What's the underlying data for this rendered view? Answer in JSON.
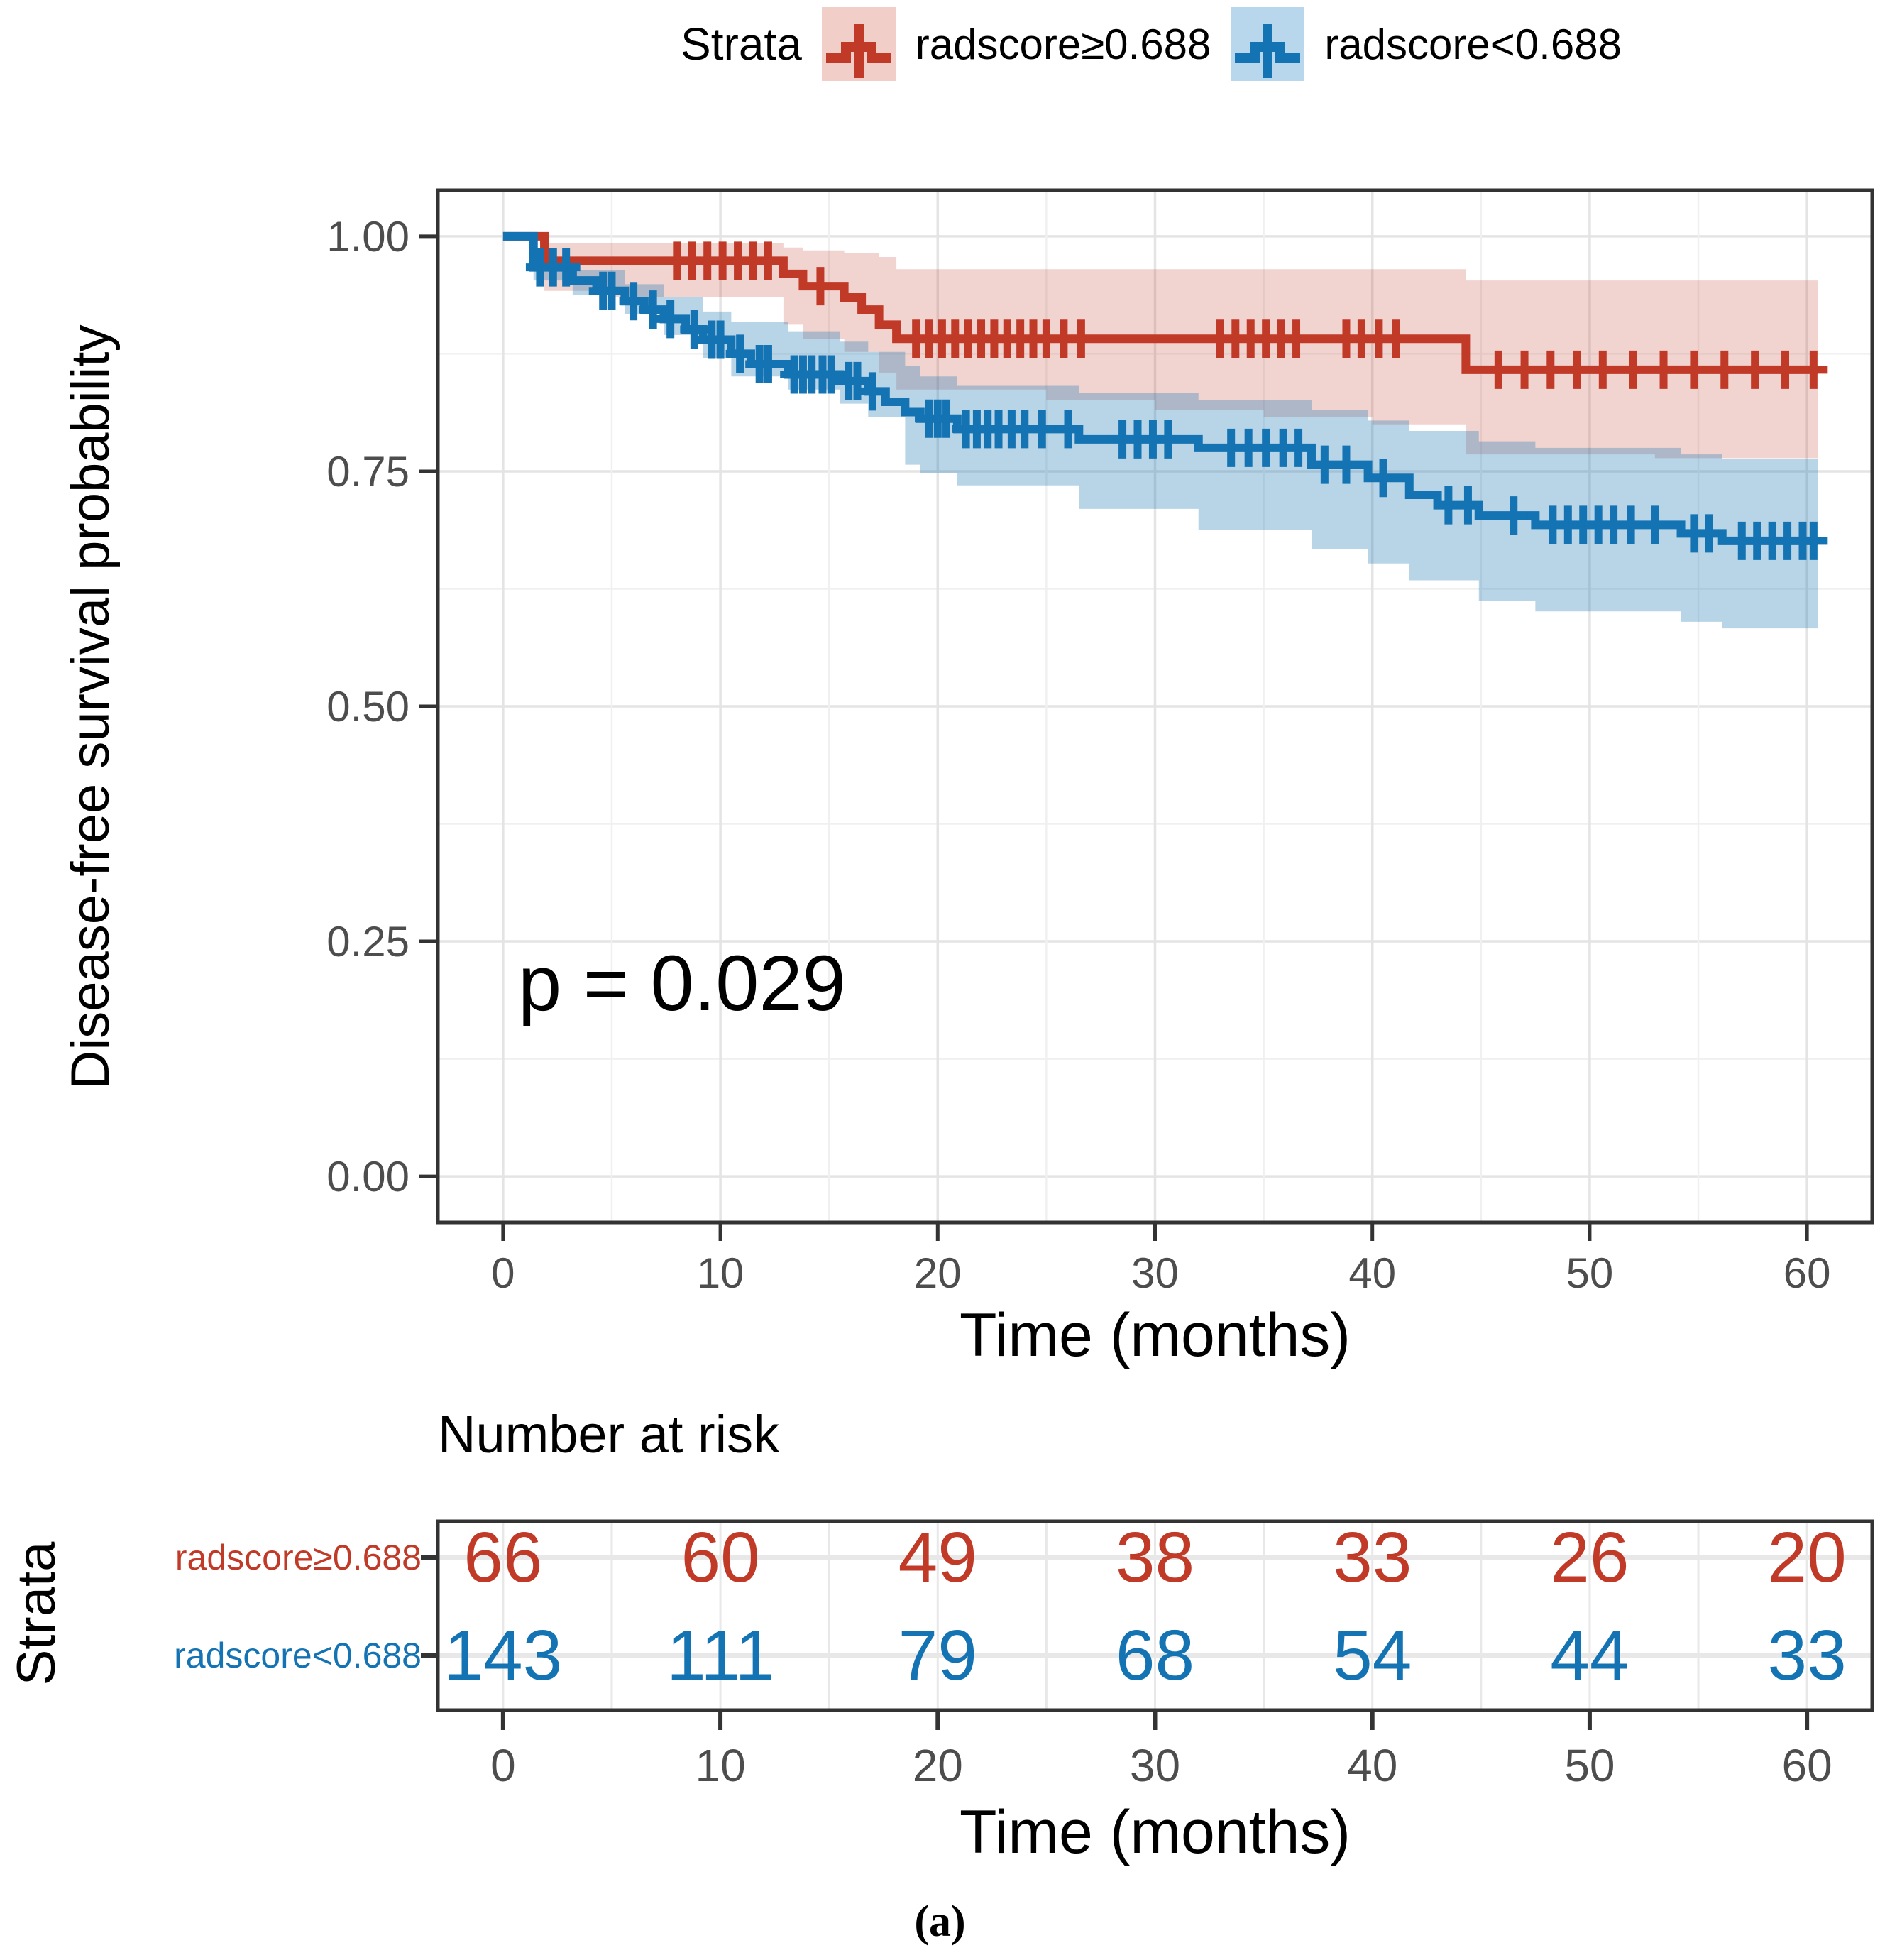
{
  "figure": {
    "caption": "(a)",
    "background": "#ffffff"
  },
  "legend": {
    "title": "Strata",
    "items": [
      {
        "label": "radscore≥0.688",
        "line_color": "#c13a27",
        "band_color": "#f2cec8"
      },
      {
        "label": "radscore<0.688",
        "line_color": "#1473b3",
        "band_color": "#b9d7ec"
      }
    ]
  },
  "style": {
    "axis_text_color": "#4d4d4d",
    "axis_line_color": "#333333",
    "grid_major_color": "#e4e4e4",
    "grid_minor_color": "#f0f0f0",
    "risk_grid_color": "#e8e8e8"
  },
  "chart_data": {
    "type": "line",
    "subtype": "kaplan_meier_step_with_confidence_bands",
    "title": "",
    "xlabel": "Time (months)",
    "ylabel": "Disease-free survival probability",
    "p_value_text": "p = 0.029",
    "xlim": [
      -3,
      63
    ],
    "ylim": [
      -0.049,
      1.049
    ],
    "t_end": 60.5,
    "grid": true,
    "x_ticks": [
      0,
      10,
      20,
      30,
      40,
      50,
      60
    ],
    "x_minor_ticks": [
      5,
      15,
      25,
      35,
      45,
      55
    ],
    "y_ticks": [
      {
        "v": 1.0,
        "label": "1.00"
      },
      {
        "v": 0.75,
        "label": "0.75"
      },
      {
        "v": 0.5,
        "label": "0.50"
      },
      {
        "v": 0.25,
        "label": "0.25"
      },
      {
        "v": 0.0,
        "label": "0.00"
      }
    ],
    "y_minor_ticks": [
      0.125,
      0.375,
      0.625,
      0.875
    ],
    "series": [
      {
        "name": "radscore≥0.688",
        "color": "#c13a27",
        "band_opacity": 0.22,
        "steps": [
          [
            0,
            1.0
          ],
          [
            1.9,
            0.974
          ],
          [
            12.9,
            0.96
          ],
          [
            13.8,
            0.947
          ],
          [
            15.7,
            0.935
          ],
          [
            16.5,
            0.922
          ],
          [
            17.3,
            0.906
          ],
          [
            18.1,
            0.891
          ],
          [
            44.3,
            0.858
          ]
        ],
        "censor_times": [
          8,
          8.7,
          9.4,
          10.1,
          10.8,
          11.5,
          12.2,
          14.6,
          19,
          19.6,
          20.2,
          20.8,
          21.4,
          22,
          22.6,
          23.2,
          23.8,
          24.4,
          25,
          25.8,
          26.6,
          33,
          33.7,
          34.4,
          35.1,
          35.8,
          36.5,
          38.8,
          39.5,
          40.3,
          41.1,
          45.8,
          47,
          48.2,
          49.4,
          50.6,
          52,
          53.4,
          54.8,
          56.2,
          57.6,
          59,
          60.3
        ],
        "band": [
          [
            0,
            1,
            1
          ],
          [
            1.9,
            0.942,
            0.993
          ],
          [
            5,
            0.935,
            0.993
          ],
          [
            12.9,
            0.906,
            0.988
          ],
          [
            13.8,
            0.891,
            0.985
          ],
          [
            15.7,
            0.877,
            0.982
          ],
          [
            17.3,
            0.855,
            0.978
          ],
          [
            18.1,
            0.837,
            0.965
          ],
          [
            25,
            0.826,
            0.965
          ],
          [
            30,
            0.815,
            0.965
          ],
          [
            35,
            0.808,
            0.965
          ],
          [
            40,
            0.8,
            0.965
          ],
          [
            44.3,
            0.768,
            0.953
          ],
          [
            53,
            0.764,
            0.953
          ]
        ]
      },
      {
        "name": "radscore<0.688",
        "color": "#1473b3",
        "band_opacity": 0.3,
        "steps": [
          [
            0,
            1.0
          ],
          [
            1.4,
            0.967
          ],
          [
            3.2,
            0.953
          ],
          [
            4.3,
            0.942
          ],
          [
            5.6,
            0.931
          ],
          [
            6.5,
            0.922
          ],
          [
            7.4,
            0.912
          ],
          [
            8.4,
            0.901
          ],
          [
            9.2,
            0.89
          ],
          [
            10.5,
            0.875
          ],
          [
            11.4,
            0.864
          ],
          [
            13.1,
            0.853
          ],
          [
            15.5,
            0.846
          ],
          [
            16.8,
            0.835
          ],
          [
            17.6,
            0.824
          ],
          [
            18.5,
            0.813
          ],
          [
            19.2,
            0.806
          ],
          [
            20.9,
            0.795
          ],
          [
            26.5,
            0.784
          ],
          [
            32,
            0.775
          ],
          [
            37.2,
            0.757
          ],
          [
            39.8,
            0.743
          ],
          [
            41.7,
            0.725
          ],
          [
            43,
            0.714
          ],
          [
            44.9,
            0.703
          ],
          [
            47.5,
            0.693
          ],
          [
            54.2,
            0.684
          ],
          [
            56.1,
            0.676
          ]
        ],
        "censor_times": [
          1.7,
          2.3,
          2.9,
          4.6,
          5,
          6,
          6.9,
          7.7,
          8.8,
          9.6,
          10,
          10.9,
          11.8,
          12.2,
          13.4,
          13.8,
          14.2,
          14.7,
          15.1,
          15.9,
          16.3,
          17,
          19.6,
          20,
          20.4,
          21.3,
          21.8,
          22.3,
          22.8,
          23.4,
          24,
          24.8,
          26,
          28.5,
          29.2,
          29.9,
          30.6,
          33.5,
          34.3,
          35.1,
          35.9,
          36.6,
          37.8,
          38.8,
          40.5,
          43.5,
          44.4,
          46.5,
          48.3,
          49,
          49.7,
          50.4,
          51.1,
          51.9,
          53,
          54.8,
          55.5,
          57,
          57.7,
          58.4,
          59.1,
          59.8,
          60.3
        ],
        "band": [
          [
            0,
            1,
            1
          ],
          [
            1.4,
            0.953,
            0.975
          ],
          [
            3.2,
            0.938,
            0.964
          ],
          [
            5.6,
            0.917,
            0.949
          ],
          [
            7.4,
            0.895,
            0.935
          ],
          [
            9.2,
            0.87,
            0.92
          ],
          [
            10.5,
            0.851,
            0.909
          ],
          [
            13.1,
            0.837,
            0.899
          ],
          [
            15.5,
            0.822,
            0.888
          ],
          [
            16.8,
            0.808,
            0.877
          ],
          [
            18.5,
            0.757,
            0.862
          ],
          [
            19.2,
            0.748,
            0.851
          ],
          [
            20.9,
            0.735,
            0.841
          ],
          [
            26.5,
            0.71,
            0.833
          ],
          [
            32,
            0.688,
            0.826
          ],
          [
            37.2,
            0.667,
            0.815
          ],
          [
            39.8,
            0.652,
            0.804
          ],
          [
            41.7,
            0.634,
            0.793
          ],
          [
            44.9,
            0.612,
            0.782
          ],
          [
            47.5,
            0.601,
            0.775
          ],
          [
            54.2,
            0.59,
            0.768
          ],
          [
            56.1,
            0.583,
            0.763
          ]
        ]
      }
    ]
  },
  "risk_table": {
    "heading": "Number at risk",
    "strata_axis_label": "Strata",
    "axis_title": "Time (months)",
    "time_points": [
      0,
      10,
      20,
      30,
      40,
      50,
      60
    ],
    "rows": [
      {
        "label": "radscore≥0.688",
        "color": "#c13a27",
        "counts": [
          66,
          60,
          49,
          38,
          33,
          26,
          20
        ]
      },
      {
        "label": "radscore<0.688",
        "color": "#1473b3",
        "counts": [
          143,
          111,
          79,
          68,
          54,
          44,
          33
        ]
      }
    ]
  }
}
